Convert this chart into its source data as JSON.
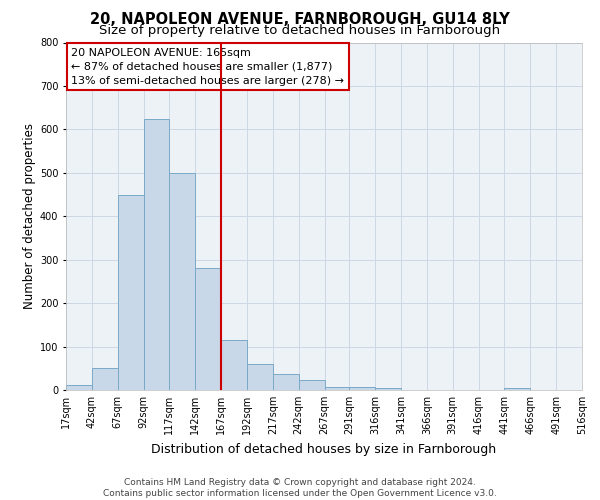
{
  "title": "20, NAPOLEON AVENUE, FARNBOROUGH, GU14 8LY",
  "subtitle": "Size of property relative to detached houses in Farnborough",
  "xlabel": "Distribution of detached houses by size in Farnborough",
  "ylabel": "Number of detached properties",
  "footer_line1": "Contains HM Land Registry data © Crown copyright and database right 2024.",
  "footer_line2": "Contains public sector information licensed under the Open Government Licence v3.0.",
  "bar_edges": [
    17,
    42,
    67,
    92,
    117,
    142,
    167,
    192,
    217,
    242,
    267,
    291,
    316,
    341,
    366,
    391,
    416,
    441,
    466,
    491,
    516
  ],
  "bar_heights": [
    12,
    50,
    450,
    625,
    500,
    280,
    115,
    60,
    37,
    22,
    8,
    8,
    5,
    0,
    0,
    0,
    0,
    5,
    0,
    0,
    0
  ],
  "bar_color": "#c8d8e8",
  "bar_edgecolor": "#7aaac8",
  "red_line_x": 167,
  "ylim": [
    0,
    800
  ],
  "yticks": [
    0,
    100,
    200,
    300,
    400,
    500,
    600,
    700,
    800
  ],
  "annotation_title": "20 NAPOLEON AVENUE: 165sqm",
  "annotation_line1": "← 87% of detached houses are smaller (1,877)",
  "annotation_line2": "13% of semi-detached houses are larger (278) →",
  "annotation_box_color": "#ffffff",
  "annotation_box_edgecolor": "#cc0000",
  "grid_color": "#ccd8e4",
  "bg_color": "#edf2f7",
  "title_fontsize": 10.5,
  "subtitle_fontsize": 9.5,
  "xlabel_fontsize": 9,
  "ylabel_fontsize": 8.5,
  "tick_fontsize": 7,
  "annotation_fontsize": 8,
  "footer_fontsize": 6.5
}
